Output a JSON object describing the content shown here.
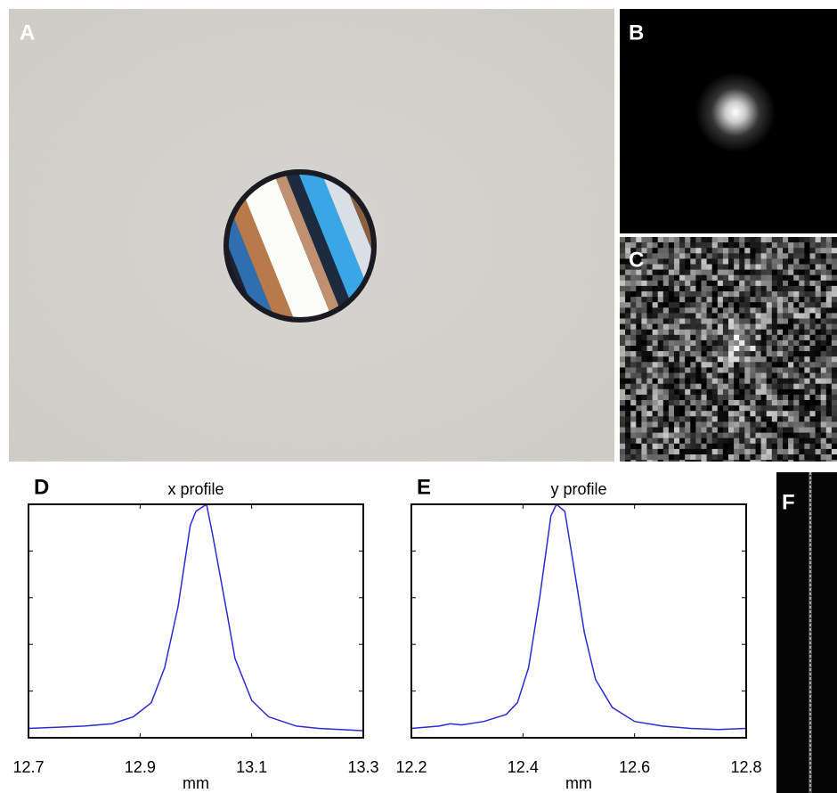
{
  "panel_labels": [
    "A",
    "B",
    "C",
    "F"
  ],
  "chart_data": [
    {
      "type": "line",
      "panel": "D",
      "title": "x profile",
      "xlabel": "mm",
      "color": "#2b2bd8",
      "x": [
        12.7,
        12.75,
        12.8,
        12.85,
        12.888,
        12.92,
        12.944,
        12.968,
        12.99,
        13.0,
        13.019,
        13.03,
        13.056,
        13.07,
        13.1,
        13.13,
        13.18,
        13.22,
        13.26,
        13.3
      ],
      "values": [
        0.04,
        0.045,
        0.05,
        0.06,
        0.09,
        0.15,
        0.3,
        0.56,
        0.91,
        0.97,
        1.0,
        0.87,
        0.53,
        0.34,
        0.16,
        0.09,
        0.05,
        0.04,
        0.035,
        0.03
      ],
      "xlim": [
        12.7,
        13.3
      ],
      "xticks": [
        12.7,
        12.9,
        13.1,
        13.3
      ],
      "ylim": [
        0,
        1
      ],
      "yticks": [
        0.2,
        0.4,
        0.6,
        0.8
      ]
    },
    {
      "type": "line",
      "panel": "E",
      "title": "y profile",
      "xlabel": "mm",
      "color": "#2b2bd8",
      "x": [
        12.2,
        12.25,
        12.27,
        12.29,
        12.33,
        12.37,
        12.39,
        12.41,
        12.43,
        12.45,
        12.46,
        12.475,
        12.49,
        12.51,
        12.53,
        12.56,
        12.6,
        12.65,
        12.7,
        12.75,
        12.8
      ],
      "values": [
        0.04,
        0.05,
        0.06,
        0.055,
        0.07,
        0.1,
        0.15,
        0.3,
        0.6,
        0.95,
        1.0,
        0.97,
        0.75,
        0.45,
        0.25,
        0.13,
        0.07,
        0.05,
        0.04,
        0.035,
        0.04
      ],
      "xlim": [
        12.2,
        12.8
      ],
      "xticks": [
        12.2,
        12.4,
        12.6,
        12.8
      ],
      "ylim": [
        0,
        1
      ],
      "yticks": [
        0.2,
        0.4,
        0.6,
        0.8
      ]
    }
  ]
}
